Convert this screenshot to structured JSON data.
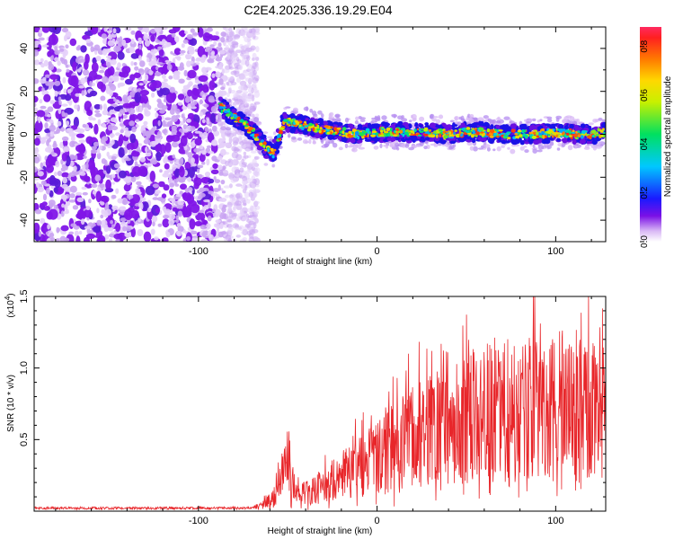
{
  "title": "C2E4.2025.336.19.29.E04",
  "chart_data": [
    {
      "type": "heatmap",
      "name": "spectrogram",
      "xlabel": "Height of straight line (km)",
      "ylabel": "Frequency (Hz)",
      "xlim": [
        -192,
        128
      ],
      "ylim": [
        -50,
        50
      ],
      "xticks": [
        -100,
        0,
        100
      ],
      "xtick_labels": [
        "-100",
        "0",
        "100"
      ],
      "yticks": [
        -40,
        -20,
        0,
        20,
        40
      ],
      "ytick_labels": [
        "-40",
        "-20",
        "0",
        "20",
        "40"
      ],
      "noise_region_x": [
        -192,
        -70
      ],
      "signal_start_x": -88,
      "signal_path": [
        [
          -88,
          13
        ],
        [
          -82,
          9
        ],
        [
          -76,
          6
        ],
        [
          -72,
          3
        ],
        [
          -66,
          -2
        ],
        [
          -62,
          -7
        ],
        [
          -58,
          -9
        ],
        [
          -56,
          -4
        ],
        [
          -52,
          6
        ],
        [
          -46,
          5
        ],
        [
          -40,
          4
        ],
        [
          -34,
          3
        ],
        [
          -28,
          2
        ],
        [
          -20,
          1
        ],
        [
          -10,
          0
        ],
        [
          0,
          1
        ],
        [
          10,
          1
        ],
        [
          20,
          1
        ],
        [
          30,
          1
        ],
        [
          40,
          0
        ],
        [
          50,
          1
        ],
        [
          60,
          1
        ],
        [
          70,
          0
        ],
        [
          80,
          0
        ],
        [
          90,
          0
        ],
        [
          100,
          1
        ],
        [
          110,
          0
        ],
        [
          120,
          0
        ],
        [
          128,
          1
        ]
      ],
      "colorbar": {
        "label": "Normalized spectral amplitude",
        "range": [
          0,
          0.88
        ],
        "ticks": [
          0.0,
          0.2,
          0.4,
          0.6,
          0.8
        ],
        "tick_labels": [
          "0.0",
          "0.2",
          "0.4",
          "0.6",
          "0.8"
        ]
      }
    },
    {
      "type": "line",
      "name": "snr",
      "xlabel": "Height of straight line (km)",
      "ylabel": "SNR (10 * v/v)",
      "scale_label": "(x10",
      "scale_exponent": "4",
      "scale_label_close": ")",
      "xlim": [
        -192,
        128
      ],
      "ylim": [
        0,
        1.5
      ],
      "xticks": [
        -100,
        0,
        100
      ],
      "xtick_labels": [
        "-100",
        "0",
        "100"
      ],
      "yticks": [
        0.5,
        1.0,
        1.5
      ],
      "ytick_labels": [
        "0.5",
        "1.0",
        "1.5"
      ],
      "series_color": "#e8262a",
      "envelope": [
        [
          -192,
          0.02
        ],
        [
          -70,
          0.02
        ],
        [
          -62,
          0.06
        ],
        [
          -56,
          0.15
        ],
        [
          -52,
          0.32
        ],
        [
          -50,
          0.42
        ],
        [
          -48,
          0.28
        ],
        [
          -44,
          0.12
        ],
        [
          -40,
          0.14
        ],
        [
          -30,
          0.2
        ],
        [
          -20,
          0.28
        ],
        [
          -10,
          0.34
        ],
        [
          0,
          0.42
        ],
        [
          10,
          0.5
        ],
        [
          20,
          0.58
        ],
        [
          30,
          0.65
        ],
        [
          40,
          0.7
        ],
        [
          50,
          0.75
        ],
        [
          60,
          0.78
        ],
        [
          70,
          0.8
        ],
        [
          80,
          0.82
        ],
        [
          90,
          0.8
        ],
        [
          100,
          0.82
        ],
        [
          110,
          0.8
        ],
        [
          120,
          0.82
        ],
        [
          128,
          0.82
        ]
      ]
    }
  ]
}
